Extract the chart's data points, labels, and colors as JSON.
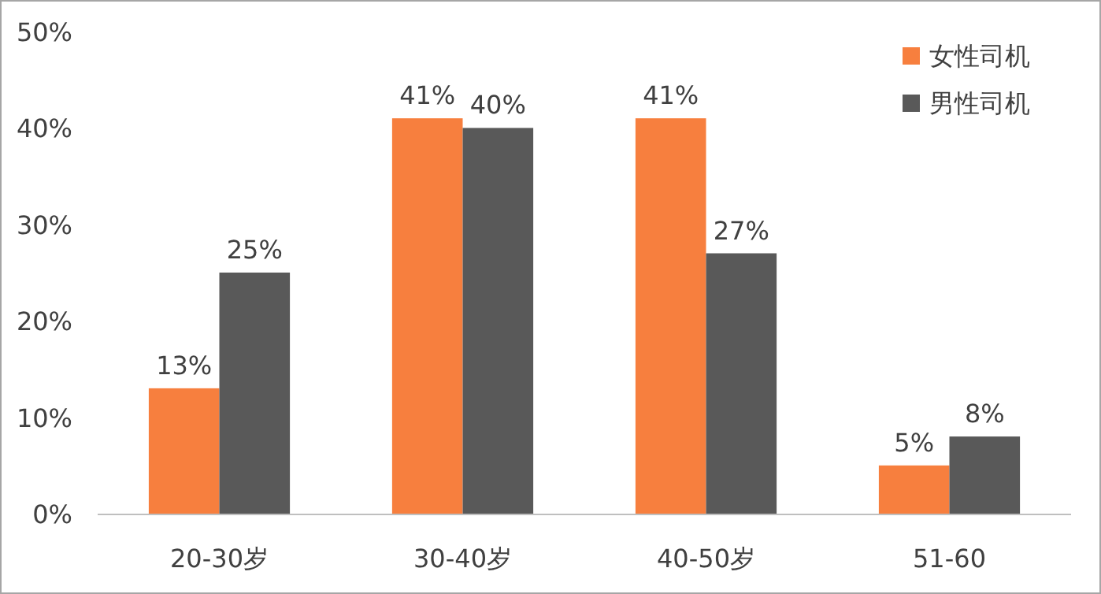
{
  "chart_data": {
    "type": "bar",
    "categories": [
      "20-30岁",
      "30-40岁",
      "40-50岁",
      "51-60"
    ],
    "series": [
      {
        "name": "女性司机",
        "color": "#f77f3e",
        "values": [
          13,
          41,
          41,
          5
        ],
        "value_labels": [
          "13%",
          "41%",
          "41%",
          "5%"
        ]
      },
      {
        "name": "男性司机",
        "color": "#595959",
        "values": [
          25,
          40,
          27,
          8
        ],
        "value_labels": [
          "25%",
          "40%",
          "27%",
          "8%"
        ]
      }
    ],
    "ylim": [
      0,
      50
    ],
    "yticks": [
      {
        "value": 0,
        "label": "0%"
      },
      {
        "value": 10,
        "label": "10%"
      },
      {
        "value": 20,
        "label": "20%"
      },
      {
        "value": 30,
        "label": "30%"
      },
      {
        "value": 40,
        "label": "40%"
      },
      {
        "value": 50,
        "label": "50%"
      }
    ],
    "legend": "top right"
  }
}
